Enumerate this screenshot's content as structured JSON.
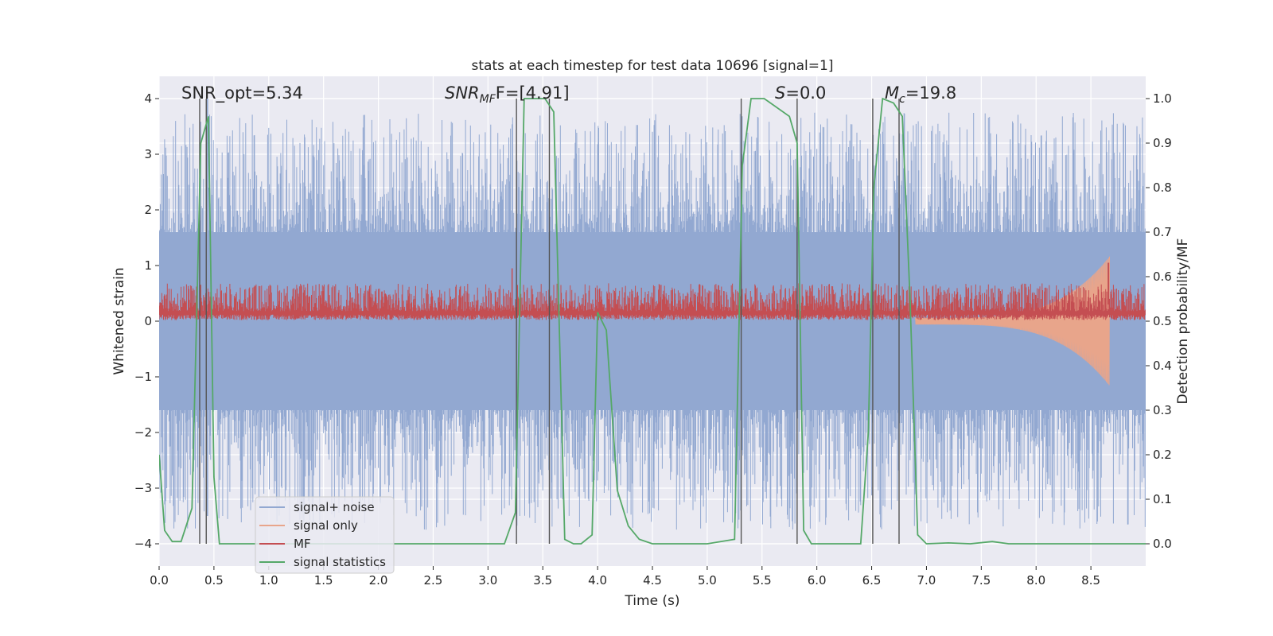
{
  "chart_data": {
    "type": "line",
    "title": "stats at each timestep for test data 10696 [signal=1]",
    "xlabel": "Time (s)",
    "ylabel": "Whitened strain",
    "y2label": "Detection probability/MF",
    "xlim": [
      0.0,
      9.0
    ],
    "ylim": [
      -4.4,
      4.4
    ],
    "y2lim": [
      -0.05,
      1.05
    ],
    "xticks": [
      0.0,
      0.5,
      1.0,
      1.5,
      2.0,
      2.5,
      3.0,
      3.5,
      4.0,
      4.5,
      5.0,
      5.5,
      6.0,
      6.5,
      7.0,
      7.5,
      8.0,
      8.5
    ],
    "xtick_labels": [
      "0.0",
      "0.5",
      "1.0",
      "1.5",
      "2.0",
      "2.5",
      "3.0",
      "3.5",
      "4.0",
      "4.5",
      "5.0",
      "5.5",
      "6.0",
      "6.5",
      "7.0",
      "7.5",
      "8.0",
      "8.5"
    ],
    "yticks": [
      -4,
      -3,
      -2,
      -1,
      0,
      1,
      2,
      3,
      4
    ],
    "ytick_labels": [
      "−4",
      "−3",
      "−2",
      "−1",
      "0",
      "1",
      "2",
      "3",
      "4"
    ],
    "y2ticks": [
      0.0,
      0.1,
      0.2,
      0.3,
      0.4,
      0.5,
      0.6,
      0.7,
      0.8,
      0.9,
      1.0
    ],
    "y2tick_labels": [
      "0.0",
      "0.1",
      "0.2",
      "0.3",
      "0.4",
      "0.5",
      "0.6",
      "0.7",
      "0.8",
      "0.9",
      "1.0"
    ],
    "annotations": {
      "snr_opt": "SNR_opt=5.34",
      "snr_mf_main": "SNR",
      "snr_mf_sub": "MF",
      "snr_mf_val": "F=[4.91]",
      "s_main": "S",
      "s_val": "=0.0",
      "mc_main": "M",
      "mc_sub": "c",
      "mc_val": "=19.8"
    },
    "vertical_lines": [
      0.37,
      0.43,
      3.26,
      3.56,
      5.31,
      5.82,
      6.51,
      6.75
    ],
    "series": [
      {
        "name": "signal+ noise",
        "color": "#92a8d1",
        "axis": "left",
        "style": "dense noise band",
        "envelope_core": [
          -1.6,
          1.6
        ],
        "peak_range": [
          -4.0,
          4.0
        ]
      },
      {
        "name": "signal only",
        "color": "#e8a58b",
        "axis": "left",
        "style": "chirp",
        "chirp_start": 6.9,
        "chirp_end": 8.67,
        "chirp_peak_amplitude": 1.1
      },
      {
        "name": "MF",
        "color": "#c44e52",
        "axis": "left",
        "style": "positive noise band",
        "typical_range": [
          0.0,
          0.6
        ],
        "peak": 1.05
      },
      {
        "name": "signal statistics",
        "color": "#55a868",
        "axis": "right",
        "x": [
          0.0,
          0.05,
          0.12,
          0.2,
          0.3,
          0.38,
          0.45,
          0.5,
          0.55,
          0.62,
          3.15,
          3.25,
          3.33,
          3.52,
          3.6,
          3.7,
          3.78,
          3.85,
          3.95,
          4.0,
          4.08,
          4.18,
          4.28,
          4.38,
          4.5,
          5.0,
          5.25,
          5.32,
          5.4,
          5.52,
          5.75,
          5.82,
          5.88,
          5.95,
          6.4,
          6.47,
          6.52,
          6.6,
          6.7,
          6.78,
          6.85,
          6.92,
          7.0,
          7.2,
          7.4,
          7.6,
          7.75,
          8.0,
          9.0
        ],
        "y": [
          0.2,
          0.03,
          0.005,
          0.005,
          0.08,
          0.9,
          0.96,
          0.15,
          0.0,
          0.0,
          0.0,
          0.07,
          1.0,
          1.0,
          0.97,
          0.01,
          0.0,
          0.0,
          0.02,
          0.52,
          0.48,
          0.12,
          0.04,
          0.01,
          0.0,
          0.0,
          0.01,
          0.85,
          1.0,
          1.0,
          0.96,
          0.9,
          0.03,
          0.0,
          0.0,
          0.25,
          0.8,
          1.0,
          0.99,
          0.96,
          0.55,
          0.02,
          0.0,
          0.002,
          0.0,
          0.005,
          0.0,
          0.0,
          0.0
        ]
      }
    ],
    "legend": {
      "location": "lower-left",
      "entries": [
        "signal+ noise",
        "signal only",
        "MF",
        "signal statistics"
      ]
    }
  }
}
